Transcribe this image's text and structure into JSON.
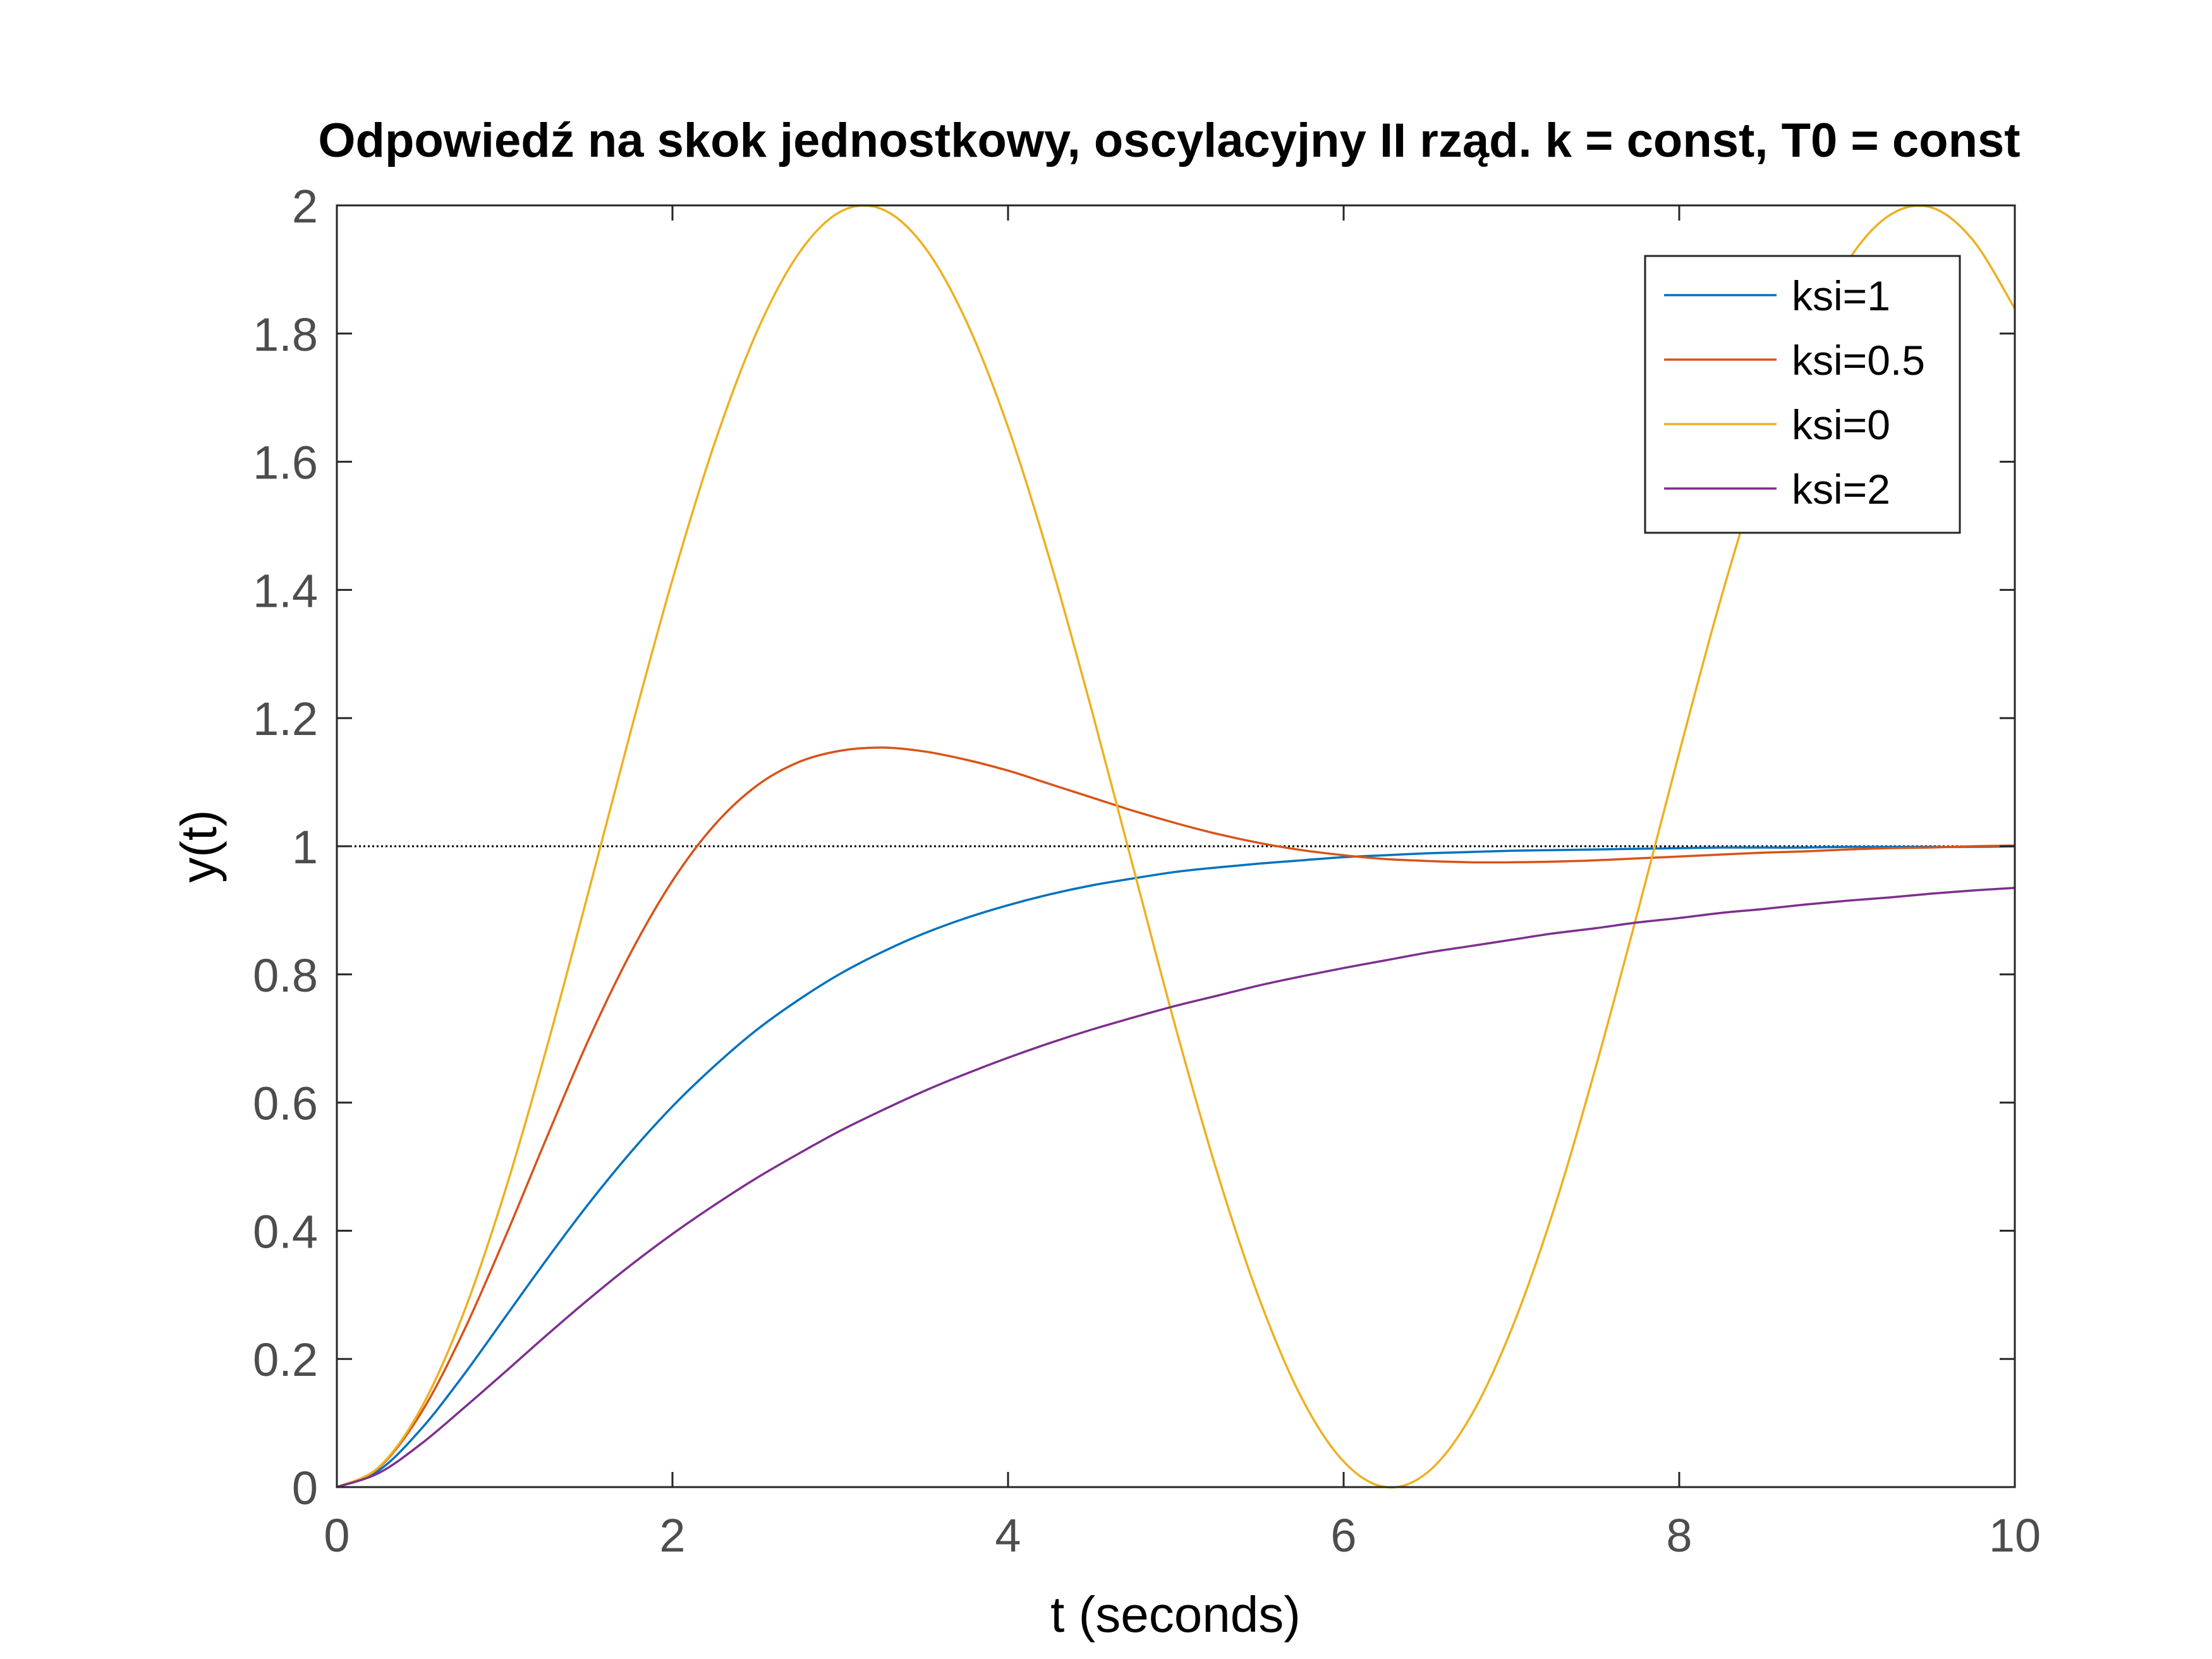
{
  "chart_data": {
    "type": "line",
    "title": "Odpowiedź na skok jednostkowy, oscylacyjny II rząd. k = const, T0 = const",
    "xlabel": "t (seconds)",
    "ylabel": "y(t)",
    "xlim": [
      0,
      10
    ],
    "ylim": [
      0,
      2
    ],
    "xticks": [
      0,
      2,
      4,
      6,
      8,
      10
    ],
    "xtick_labels": [
      "0",
      "2",
      "4",
      "6",
      "8",
      "10"
    ],
    "yticks": [
      0,
      0.2,
      0.4,
      0.6,
      0.8,
      1,
      1.2,
      1.4,
      1.6,
      1.8,
      2
    ],
    "ytick_labels": [
      "0",
      "0.2",
      "0.4",
      "0.6",
      "0.8",
      "1",
      "1.2",
      "1.4",
      "1.6",
      "1.8",
      "2"
    ],
    "grid": false,
    "legend_position": "top-right",
    "reference_line": {
      "y": 1,
      "style": "dotted",
      "color": "#000000"
    },
    "x": [
      0,
      0.25,
      0.5,
      0.75,
      1,
      1.25,
      1.5,
      1.75,
      2,
      2.25,
      2.5,
      2.75,
      3,
      3.25,
      3.5,
      3.75,
      4,
      4.25,
      4.5,
      4.75,
      5,
      5.25,
      5.5,
      5.75,
      6,
      6.25,
      6.5,
      6.75,
      7,
      7.25,
      7.5,
      7.75,
      8,
      8.25,
      8.5,
      8.75,
      9,
      9.25,
      9.5,
      9.75,
      10
    ],
    "series": [
      {
        "name": "ksi=1",
        "color": "#0072BD",
        "values": [
          0,
          0.026,
          0.09,
          0.173,
          0.264,
          0.355,
          0.442,
          0.522,
          0.594,
          0.657,
          0.713,
          0.76,
          0.801,
          0.835,
          0.864,
          0.888,
          0.908,
          0.925,
          0.939,
          0.95,
          0.96,
          0.967,
          0.973,
          0.978,
          0.983,
          0.986,
          0.989,
          0.991,
          0.993,
          0.994,
          0.995,
          0.996,
          0.997,
          0.998,
          0.998,
          0.998,
          0.999,
          0.999,
          0.999,
          0.999,
          1.0
        ]
      },
      {
        "name": "ksi=0.5",
        "color": "#D95319",
        "values": [
          0,
          0.03,
          0.115,
          0.24,
          0.388,
          0.545,
          0.698,
          0.833,
          0.946,
          1.033,
          1.094,
          1.131,
          1.149,
          1.154,
          1.148,
          1.135,
          1.118,
          1.097,
          1.076,
          1.055,
          1.036,
          1.019,
          1.005,
          0.994,
          0.986,
          0.98,
          0.977,
          0.975,
          0.975,
          0.976,
          0.978,
          0.981,
          0.984,
          0.987,
          0.99,
          0.992,
          0.995,
          0.997,
          0.998,
          1.0,
          1.001
        ]
      },
      {
        "name": "ksi=0",
        "color": "#EDB120",
        "values": [
          0,
          0.031,
          0.122,
          0.268,
          0.46,
          0.685,
          0.929,
          1.178,
          1.416,
          1.628,
          1.801,
          1.924,
          1.99,
          1.994,
          1.936,
          1.82,
          1.654,
          1.446,
          1.211,
          0.963,
          0.716,
          0.488,
          0.292,
          0.139,
          0.04,
          0.0,
          0.023,
          0.107,
          0.246,
          0.431,
          0.653,
          0.895,
          1.146,
          1.388,
          1.602,
          1.78,
          1.911,
          1.984,
          1.997,
          1.946,
          1.839
        ]
      },
      {
        "name": "ksi=2",
        "color": "#7E2F8E",
        "values": [
          0,
          0.022,
          0.067,
          0.122,
          0.179,
          0.237,
          0.293,
          0.346,
          0.395,
          0.44,
          0.482,
          0.52,
          0.556,
          0.588,
          0.618,
          0.645,
          0.67,
          0.693,
          0.714,
          0.733,
          0.751,
          0.767,
          0.783,
          0.797,
          0.81,
          0.822,
          0.834,
          0.844,
          0.854,
          0.864,
          0.872,
          0.881,
          0.888,
          0.896,
          0.902,
          0.909,
          0.915,
          0.92,
          0.926,
          0.931,
          0.935
        ]
      }
    ]
  }
}
